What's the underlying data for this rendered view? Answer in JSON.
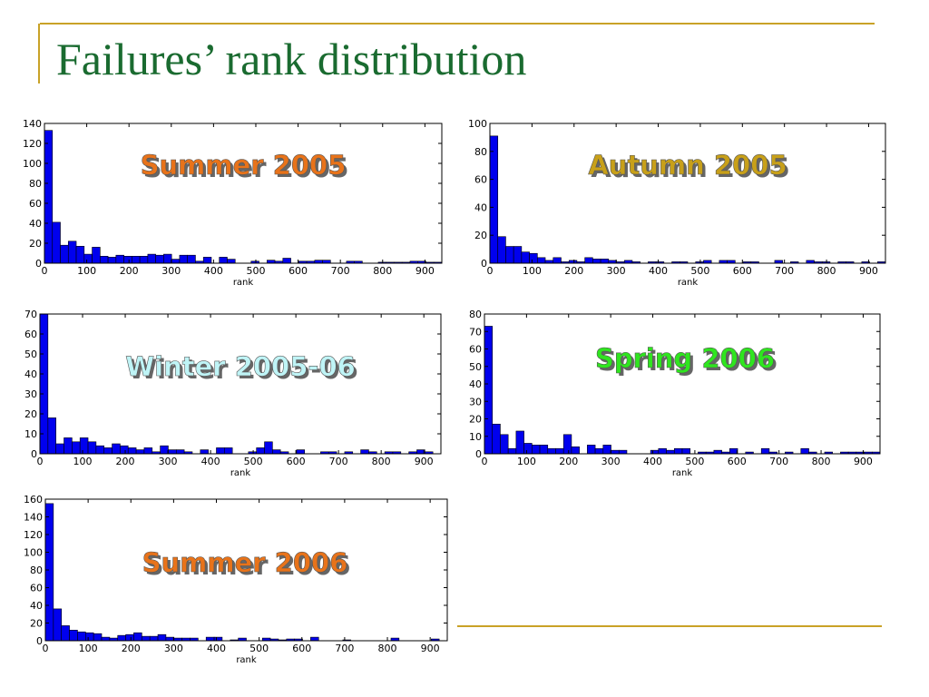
{
  "slide": {
    "title": "Failures’ rank distribution"
  },
  "colors": {
    "accent_line": "#c9a227",
    "title": "#1a6b30",
    "bar_fill": "#0000ee",
    "bar_stroke": "#000000"
  },
  "chart_data": [
    {
      "type": "bar",
      "label": "Summer 2005",
      "label_color": "#e8731a",
      "xlabel": "rank",
      "xlim": [
        0,
        940
      ],
      "ylim": [
        0,
        140
      ],
      "xticks": [
        0,
        100,
        200,
        300,
        400,
        500,
        600,
        700,
        800,
        900
      ],
      "yticks": [
        0,
        20,
        40,
        60,
        80,
        100,
        120,
        140
      ],
      "bin_width": 18.8,
      "values": [
        133,
        41,
        18,
        22,
        17,
        9,
        16,
        7,
        6,
        8,
        7,
        7,
        7,
        9,
        8,
        9,
        4,
        8,
        8,
        2,
        6,
        0,
        6,
        4,
        0,
        0,
        2,
        0,
        3,
        2,
        5,
        0,
        2,
        2,
        3,
        3,
        0,
        0,
        2,
        2,
        0,
        0,
        1,
        1,
        1,
        1,
        2,
        2,
        1,
        1
      ]
    },
    {
      "type": "bar",
      "label": "Autumn 2005",
      "label_color": "#c8a019",
      "xlabel": "rank",
      "xlim": [
        0,
        940
      ],
      "ylim": [
        0,
        100
      ],
      "xticks": [
        0,
        100,
        200,
        300,
        400,
        500,
        600,
        700,
        800,
        900
      ],
      "yticks": [
        0,
        20,
        40,
        60,
        80,
        100
      ],
      "bin_width": 18.8,
      "values": [
        91,
        19,
        12,
        12,
        8,
        7,
        4,
        2,
        4,
        1,
        2,
        1,
        4,
        3,
        3,
        2,
        1,
        2,
        1,
        0,
        1,
        1,
        0,
        1,
        1,
        0,
        1,
        2,
        0,
        2,
        2,
        0,
        1,
        1,
        0,
        0,
        2,
        0,
        1,
        0,
        2,
        1,
        1,
        0,
        1,
        1,
        0,
        1,
        0,
        1
      ]
    },
    {
      "type": "bar",
      "label": "Winter 2005-06",
      "label_color": "#bff4f6",
      "xlabel": "rank",
      "xlim": [
        0,
        940
      ],
      "ylim": [
        0,
        70
      ],
      "xticks": [
        0,
        100,
        200,
        300,
        400,
        500,
        600,
        700,
        800,
        900
      ],
      "yticks": [
        0,
        10,
        20,
        30,
        40,
        50,
        60,
        70
      ],
      "bin_width": 18.8,
      "values": [
        70,
        18,
        5,
        8,
        6,
        8,
        6,
        4,
        3,
        5,
        4,
        3,
        2,
        3,
        1,
        4,
        2,
        2,
        1,
        0,
        2,
        0,
        3,
        3,
        0,
        0,
        1,
        3,
        6,
        2,
        1,
        0,
        2,
        0,
        0,
        1,
        1,
        0,
        1,
        0,
        2,
        1,
        0,
        1,
        1,
        0,
        1,
        2,
        1,
        0
      ]
    },
    {
      "type": "bar",
      "label": "Spring 2006",
      "label_color": "#2fe51f",
      "xlabel": "rank",
      "xlim": [
        0,
        940
      ],
      "ylim": [
        0,
        80
      ],
      "xticks": [
        0,
        100,
        200,
        300,
        400,
        500,
        600,
        700,
        800,
        900
      ],
      "yticks": [
        0,
        10,
        20,
        30,
        40,
        50,
        60,
        70,
        80
      ],
      "bin_width": 18.8,
      "values": [
        73,
        17,
        11,
        3,
        13,
        6,
        5,
        5,
        3,
        3,
        11,
        4,
        0,
        5,
        3,
        5,
        2,
        2,
        0,
        0,
        0,
        2,
        3,
        2,
        3,
        3,
        0,
        1,
        1,
        2,
        1,
        3,
        0,
        1,
        0,
        3,
        1,
        0,
        1,
        0,
        3,
        1,
        0,
        1,
        0,
        1,
        1,
        1,
        1,
        1
      ]
    },
    {
      "type": "bar",
      "label": "Summer 2006",
      "label_color": "#e8731a",
      "xlabel": "rank",
      "xlim": [
        0,
        940
      ],
      "ylim": [
        0,
        160
      ],
      "xticks": [
        0,
        100,
        200,
        300,
        400,
        500,
        600,
        700,
        800,
        900
      ],
      "yticks": [
        0,
        20,
        40,
        60,
        80,
        100,
        120,
        140,
        160
      ],
      "bin_width": 18.8,
      "values": [
        155,
        36,
        17,
        12,
        10,
        9,
        8,
        4,
        3,
        6,
        7,
        9,
        5,
        5,
        7,
        4,
        3,
        3,
        3,
        0,
        4,
        4,
        0,
        1,
        3,
        0,
        0,
        3,
        2,
        1,
        2,
        2,
        0,
        4,
        0,
        0,
        0,
        1,
        0,
        0,
        0,
        0,
        0,
        3,
        0,
        0,
        0,
        0,
        2,
        0
      ]
    }
  ]
}
